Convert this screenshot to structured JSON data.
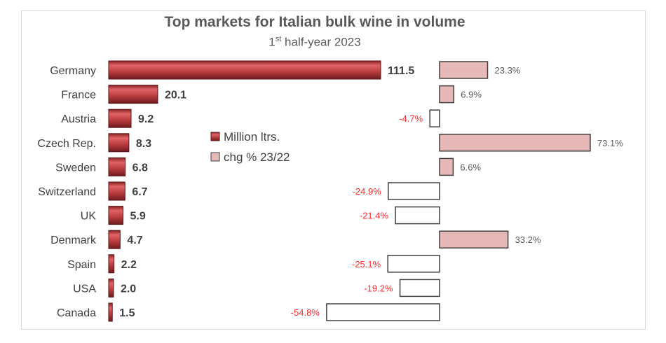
{
  "chart_data": {
    "type": "bar",
    "title": "Top markets for Italian bulk wine in volume",
    "subtitle": {
      "prefix": "1",
      "sup": "st",
      "rest": " half-year 2023"
    },
    "categories": [
      "Germany",
      "France",
      "Austria",
      "Czech Rep.",
      "Sweden",
      "Switzerland",
      "UK",
      "Denmark",
      "Spain",
      "USA",
      "Canada"
    ],
    "series": [
      {
        "name": "Million ltrs.",
        "values": [
          111.5,
          20.1,
          9.2,
          8.3,
          6.8,
          6.7,
          5.9,
          4.7,
          2.2,
          2.0,
          1.5
        ],
        "color": "#b83c3e"
      },
      {
        "name": "chg % 23/22",
        "values": [
          23.3,
          6.9,
          -4.7,
          73.1,
          6.6,
          -24.9,
          -21.4,
          33.2,
          -25.1,
          -19.2,
          -54.8
        ],
        "color_positive": "#e6b9b8",
        "color_negative": "#ffffff",
        "label_color_negative": "#ff2a2a"
      }
    ],
    "legend": "center",
    "grid": false
  }
}
